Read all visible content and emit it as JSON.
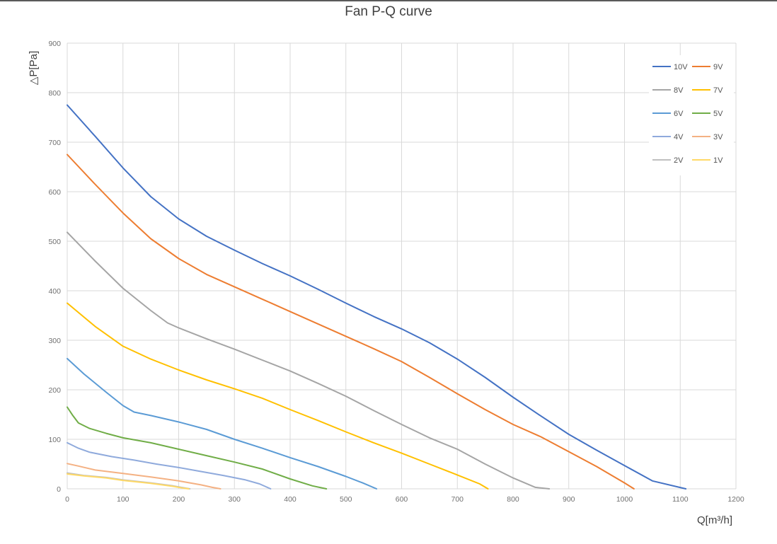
{
  "chart_data": {
    "type": "line",
    "title": "Fan P-Q curve",
    "xlabel": "Q[m³/h]",
    "ylabel": "△P[Pa]",
    "xlim": [
      0,
      1200
    ],
    "ylim": [
      0,
      900
    ],
    "xticks": [
      0,
      100,
      200,
      300,
      400,
      500,
      600,
      700,
      800,
      900,
      1000,
      1100,
      1200
    ],
    "yticks": [
      0,
      100,
      200,
      300,
      400,
      500,
      600,
      700,
      800,
      900
    ],
    "grid": true,
    "legend_position": "top-right",
    "series": [
      {
        "name": "10V",
        "color": "#4472C4",
        "points": [
          [
            0,
            775
          ],
          [
            50,
            712
          ],
          [
            100,
            648
          ],
          [
            150,
            590
          ],
          [
            200,
            545
          ],
          [
            250,
            510
          ],
          [
            300,
            482
          ],
          [
            350,
            455
          ],
          [
            400,
            430
          ],
          [
            450,
            403
          ],
          [
            500,
            375
          ],
          [
            550,
            348
          ],
          [
            600,
            323
          ],
          [
            650,
            295
          ],
          [
            700,
            262
          ],
          [
            750,
            225
          ],
          [
            800,
            185
          ],
          [
            850,
            147
          ],
          [
            900,
            110
          ],
          [
            950,
            78
          ],
          [
            1000,
            47
          ],
          [
            1050,
            16
          ],
          [
            1110,
            0
          ]
        ]
      },
      {
        "name": "9V",
        "color": "#ED7D31",
        "points": [
          [
            0,
            675
          ],
          [
            50,
            615
          ],
          [
            100,
            557
          ],
          [
            150,
            505
          ],
          [
            200,
            465
          ],
          [
            250,
            433
          ],
          [
            300,
            408
          ],
          [
            350,
            383
          ],
          [
            400,
            358
          ],
          [
            450,
            333
          ],
          [
            500,
            308
          ],
          [
            550,
            283
          ],
          [
            600,
            257
          ],
          [
            650,
            225
          ],
          [
            700,
            192
          ],
          [
            750,
            160
          ],
          [
            800,
            130
          ],
          [
            850,
            105
          ],
          [
            900,
            75
          ],
          [
            950,
            45
          ],
          [
            1000,
            12
          ],
          [
            1017,
            0
          ]
        ]
      },
      {
        "name": "8V",
        "color": "#A5A5A5",
        "points": [
          [
            0,
            518
          ],
          [
            50,
            460
          ],
          [
            100,
            405
          ],
          [
            150,
            360
          ],
          [
            180,
            335
          ],
          [
            200,
            325
          ],
          [
            250,
            303
          ],
          [
            300,
            282
          ],
          [
            350,
            260
          ],
          [
            400,
            238
          ],
          [
            450,
            213
          ],
          [
            500,
            187
          ],
          [
            550,
            158
          ],
          [
            600,
            130
          ],
          [
            650,
            103
          ],
          [
            700,
            80
          ],
          [
            750,
            50
          ],
          [
            800,
            22
          ],
          [
            840,
            3
          ],
          [
            865,
            0
          ]
        ]
      },
      {
        "name": "7V",
        "color": "#FFC000",
        "points": [
          [
            0,
            375
          ],
          [
            50,
            328
          ],
          [
            100,
            288
          ],
          [
            125,
            275
          ],
          [
            150,
            262
          ],
          [
            200,
            240
          ],
          [
            250,
            220
          ],
          [
            300,
            202
          ],
          [
            350,
            183
          ],
          [
            400,
            160
          ],
          [
            450,
            138
          ],
          [
            500,
            115
          ],
          [
            550,
            93
          ],
          [
            600,
            72
          ],
          [
            650,
            50
          ],
          [
            700,
            28
          ],
          [
            740,
            10
          ],
          [
            755,
            0
          ]
        ]
      },
      {
        "name": "6V",
        "color": "#5B9BD5",
        "points": [
          [
            0,
            263
          ],
          [
            30,
            232
          ],
          [
            70,
            195
          ],
          [
            100,
            168
          ],
          [
            120,
            155
          ],
          [
            150,
            148
          ],
          [
            200,
            135
          ],
          [
            250,
            120
          ],
          [
            300,
            100
          ],
          [
            350,
            82
          ],
          [
            400,
            63
          ],
          [
            450,
            45
          ],
          [
            500,
            25
          ],
          [
            530,
            12
          ],
          [
            555,
            0
          ]
        ]
      },
      {
        "name": "5V",
        "color": "#70AD47",
        "points": [
          [
            0,
            165
          ],
          [
            10,
            148
          ],
          [
            20,
            133
          ],
          [
            40,
            122
          ],
          [
            70,
            112
          ],
          [
            100,
            103
          ],
          [
            150,
            93
          ],
          [
            200,
            80
          ],
          [
            250,
            67
          ],
          [
            300,
            54
          ],
          [
            350,
            40
          ],
          [
            400,
            20
          ],
          [
            440,
            6
          ],
          [
            465,
            0
          ]
        ]
      },
      {
        "name": "4V",
        "color": "#8FAADC",
        "points": [
          [
            0,
            93
          ],
          [
            20,
            82
          ],
          [
            40,
            74
          ],
          [
            80,
            65
          ],
          [
            120,
            58
          ],
          [
            160,
            50
          ],
          [
            200,
            43
          ],
          [
            240,
            35
          ],
          [
            280,
            27
          ],
          [
            320,
            18
          ],
          [
            345,
            10
          ],
          [
            365,
            0
          ]
        ]
      },
      {
        "name": "3V",
        "color": "#F4B183",
        "points": [
          [
            0,
            51
          ],
          [
            20,
            46
          ],
          [
            50,
            38
          ],
          [
            100,
            31
          ],
          [
            150,
            24
          ],
          [
            200,
            16
          ],
          [
            240,
            8
          ],
          [
            260,
            3
          ],
          [
            275,
            0
          ]
        ]
      },
      {
        "name": "2V",
        "color": "#BFBFBF",
        "points": [
          [
            0,
            32
          ],
          [
            30,
            27
          ],
          [
            70,
            23
          ],
          [
            100,
            18
          ],
          [
            150,
            12
          ],
          [
            190,
            6
          ],
          [
            210,
            2
          ],
          [
            220,
            0
          ]
        ]
      },
      {
        "name": "1V",
        "color": "#FFD966",
        "points": [
          [
            0,
            30
          ],
          [
            30,
            26
          ],
          [
            70,
            22
          ],
          [
            100,
            17
          ],
          [
            150,
            11
          ],
          [
            190,
            5
          ],
          [
            210,
            1
          ],
          [
            218,
            0
          ]
        ]
      }
    ]
  }
}
